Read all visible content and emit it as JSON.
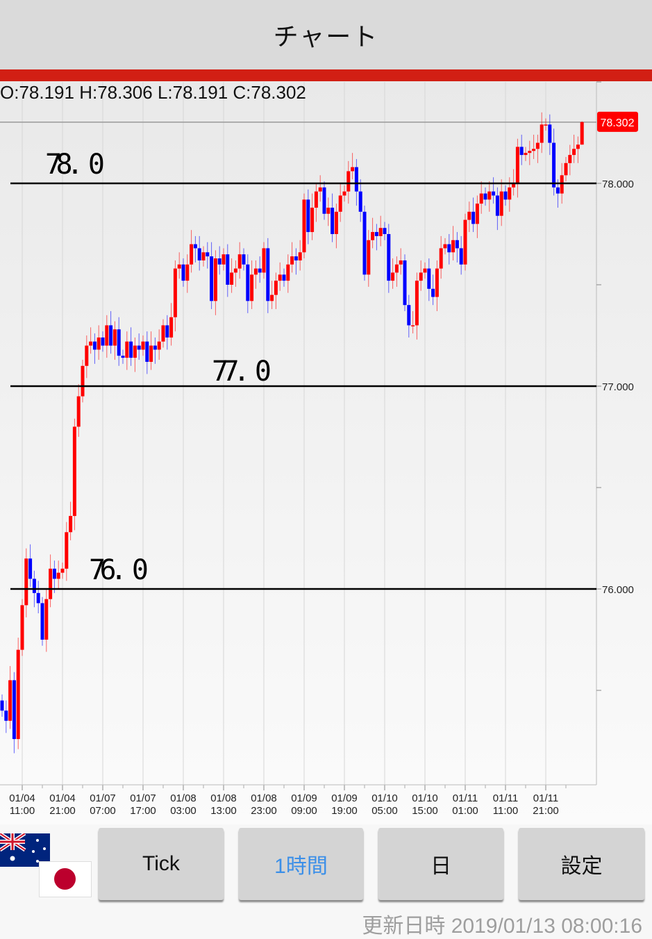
{
  "header": {
    "title": "チャート"
  },
  "ohlc_readout": "O:78.191 H:78.306 L:78.191 C:78.302",
  "colors": {
    "up": "#ff0000",
    "down": "#0000ff",
    "accent_bar": "#d21f14",
    "price_tag": "#ff0000",
    "active_button": "#3b8fe8"
  },
  "chart_data": {
    "type": "candlestick",
    "ylim": [
      75.03,
      78.5
    ],
    "y_ticks": [
      {
        "value": 78.0,
        "label": "78.000"
      },
      {
        "value": 77.0,
        "label": "77.000"
      },
      {
        "value": 76.0,
        "label": "76.000"
      }
    ],
    "y_minor_ticks": [
      78.5,
      77.5,
      76.5,
      75.5
    ],
    "x_tick_labels": [
      [
        "01/04",
        "11:00"
      ],
      [
        "01/04",
        "21:00"
      ],
      [
        "01/07",
        "07:00"
      ],
      [
        "01/07",
        "17:00"
      ],
      [
        "01/08",
        "03:00"
      ],
      [
        "01/08",
        "13:00"
      ],
      [
        "01/08",
        "23:00"
      ],
      [
        "01/09",
        "09:00"
      ],
      [
        "01/09",
        "19:00"
      ],
      [
        "01/10",
        "05:00"
      ],
      [
        "01/10",
        "15:00"
      ],
      [
        "01/11",
        "01:00"
      ],
      [
        "01/11",
        "11:00"
      ],
      [
        "01/11",
        "21:00"
      ]
    ],
    "x_tick_candle_index": [
      5,
      15,
      25,
      35,
      45,
      55,
      65,
      75,
      85,
      95,
      105,
      115,
      125,
      135
    ],
    "current_price": {
      "value": 78.302,
      "label": "78.302"
    },
    "last_candle": {
      "o": 78.191,
      "h": 78.306,
      "l": 78.191,
      "c": 78.302
    },
    "closes": [
      75.4,
      75.35,
      75.55,
      75.26,
      75.7,
      75.92,
      76.15,
      76.05,
      75.98,
      75.93,
      75.75,
      75.95,
      76.1,
      76.05,
      76.08,
      76.1,
      76.28,
      76.36,
      76.8,
      76.95,
      77.1,
      77.2,
      77.22,
      77.18,
      77.24,
      77.2,
      77.3,
      77.2,
      77.28,
      77.15,
      77.14,
      77.22,
      77.14,
      77.2,
      77.18,
      77.22,
      77.12,
      77.2,
      77.18,
      77.22,
      77.3,
      77.24,
      77.34,
      77.58,
      77.6,
      77.52,
      77.6,
      77.7,
      77.68,
      77.62,
      77.66,
      77.64,
      77.42,
      77.63,
      77.6,
      77.65,
      77.5,
      77.56,
      77.58,
      77.65,
      77.6,
      77.42,
      77.55,
      77.58,
      77.56,
      77.68,
      77.42,
      77.45,
      77.52,
      77.55,
      77.52,
      77.6,
      77.64,
      77.62,
      77.66,
      77.92,
      77.76,
      77.88,
      77.96,
      77.98,
      77.85,
      77.88,
      77.75,
      77.86,
      77.94,
      77.96,
      78.06,
      78.08,
      77.96,
      77.86,
      77.55,
      77.72,
      77.76,
      77.74,
      77.78,
      77.75,
      77.52,
      77.56,
      77.6,
      77.62,
      77.4,
      77.3,
      77.3,
      77.52,
      77.56,
      77.58,
      77.48,
      77.44,
      77.58,
      77.68,
      77.7,
      77.66,
      77.72,
      77.68,
      77.6,
      77.82,
      77.86,
      77.8,
      77.9,
      77.95,
      77.92,
      77.96,
      77.94,
      77.84,
      77.96,
      77.92,
      77.98,
      78.0,
      78.18,
      78.14,
      78.15,
      78.16,
      78.17,
      78.2,
      78.29,
      78.29,
      78.2,
      77.98,
      77.95,
      78.04,
      78.1,
      78.14,
      78.17,
      78.191,
      78.302
    ],
    "annotation_lines": [
      {
        "value": 78.0,
        "label": "78. 0"
      },
      {
        "value": 77.0,
        "label": "77. 0"
      },
      {
        "value": 76.0,
        "label": "76. 0"
      }
    ]
  },
  "buttons": [
    {
      "label": "Tick",
      "active": false
    },
    {
      "label": "1時間",
      "active": true
    },
    {
      "label": "日",
      "active": false
    },
    {
      "label": "設定",
      "active": false
    }
  ],
  "flags": {
    "base": "australia-flag-icon",
    "quote": "japan-flag-icon"
  },
  "footer": {
    "updated": "更新日時 2019/01/13 08:00:16"
  }
}
